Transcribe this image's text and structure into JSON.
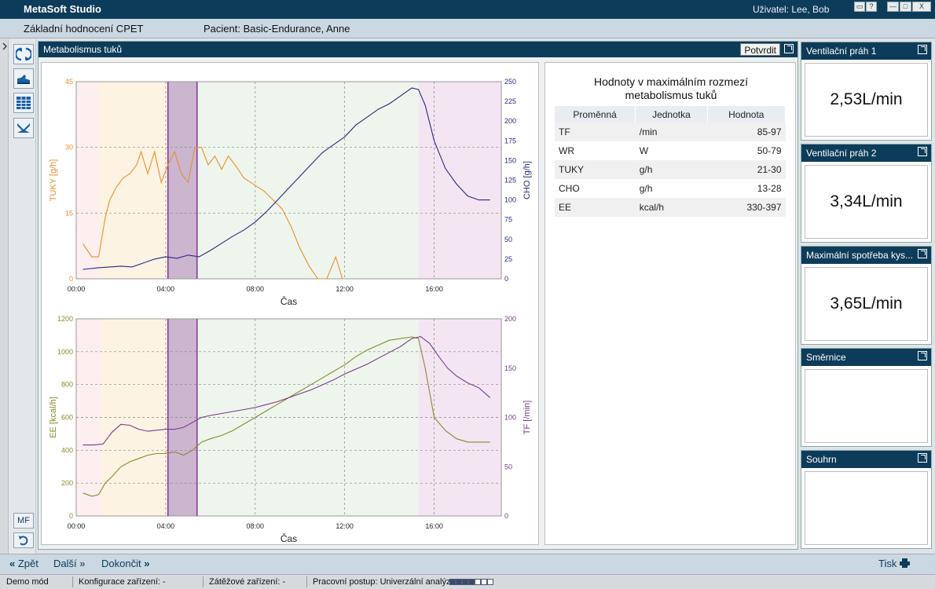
{
  "app": {
    "title": "MetaSoft Studio",
    "user": "Uživatel: Lee, Bob"
  },
  "window_buttons": [
    "▭",
    "?",
    "—",
    "□",
    "X"
  ],
  "info": {
    "test_name": "Základní hodnocení CPET",
    "patient": "Pacient:  Basic-Endurance, Anne"
  },
  "toolbar": {
    "icons": [
      "refresh-icon",
      "shoe-icon",
      "grid-icon",
      "scissors-icon"
    ],
    "mf_label": "MF",
    "undo_icon": "undo-icon"
  },
  "main_panel": {
    "title": "Metabolismus tuků",
    "confirm_label": "Potvrdit"
  },
  "table": {
    "title_line1": "Hodnoty v maximálním rozmezí",
    "title_line2": "metabolismus tuků",
    "headers": [
      "Proměnná",
      "Jednotka",
      "Hodnota"
    ],
    "rows": [
      [
        "TF",
        "/min",
        "85-97"
      ],
      [
        "WR",
        "W",
        "50-79"
      ],
      [
        "TUKY",
        "g/h",
        "21-30"
      ],
      [
        "CHO",
        "g/h",
        "13-28"
      ],
      [
        "EE",
        "kcal/h",
        "330-397"
      ]
    ]
  },
  "right_panels": [
    {
      "title": "Ventilační práh 1",
      "value": "2,53L/min"
    },
    {
      "title": "Ventilační práh 2",
      "value": "3,34L/min"
    },
    {
      "title": "Maximální spotřeba kys...",
      "value": "3,65L/min"
    },
    {
      "title": "Směrnice",
      "value": ""
    },
    {
      "title": "Souhrn",
      "value": ""
    }
  ],
  "nav": {
    "back": "Zpět",
    "next": "Další",
    "finish": "Dokončit",
    "print": "Tisk"
  },
  "status": {
    "mode": "Demo mód",
    "config": "Konfigurace zařízení: -",
    "load": "Zátěžové zařízení: -",
    "workflow": "Pracovní postup: Univerzální analýza",
    "progress_filled": 4,
    "progress_total": 7
  },
  "colors": {
    "fat": "#e8902a",
    "cho": "#2a2a80",
    "ee": "#8a8a2a",
    "tf": "#7a3a8a",
    "header": "#0d3c5a"
  },
  "chart_data": [
    {
      "type": "line",
      "xlabel": "Čas",
      "ylabel_left": "TUKY [g/h]",
      "ylabel_right": "CHO [g/h]",
      "x_ticks": [
        "00:00",
        "04:00",
        "08:00",
        "12:00",
        "16:00"
      ],
      "x_range_min": [
        0,
        19
      ],
      "y_left_ticks": [
        "0",
        "15",
        "30",
        "45"
      ],
      "y_left_range": [
        0,
        45
      ],
      "y_right_ticks": [
        "0",
        "25",
        "50",
        "75",
        "100",
        "125",
        "150",
        "175",
        "200",
        "225",
        "250"
      ],
      "y_right_range": [
        0,
        250
      ],
      "zones_min": [
        {
          "from": 0,
          "to": 1,
          "color": "#fdeef0"
        },
        {
          "from": 1,
          "to": 4.1,
          "color": "#fdf3e3"
        },
        {
          "from": 4.1,
          "to": 5.4,
          "color": "#cbb5cf"
        },
        {
          "from": 5.4,
          "to": 15.3,
          "color": "#eef5ec"
        },
        {
          "from": 15.3,
          "to": 19,
          "color": "#f3e6f2"
        }
      ],
      "markers_min": [
        4.1,
        5.4
      ],
      "series": [
        {
          "axis": "left",
          "color": "#e8902a",
          "x": [
            0.3,
            0.7,
            1.0,
            1.3,
            1.5,
            1.8,
            2.1,
            2.4,
            2.7,
            2.9,
            3.2,
            3.5,
            3.8,
            4.1,
            4.4,
            4.7,
            5.0,
            5.3,
            5.6,
            5.9,
            6.2,
            6.5,
            6.8,
            7.1,
            7.5,
            7.8,
            8.1,
            8.4,
            8.8,
            9.2,
            9.6,
            10.0,
            10.4,
            10.8,
            11.2,
            11.6,
            11.9
          ],
          "y": [
            8,
            5,
            5,
            14,
            18,
            21,
            23,
            24,
            26,
            29,
            24,
            29,
            22,
            26,
            29,
            24,
            22,
            30,
            30,
            26,
            28,
            25,
            28,
            26,
            23,
            22,
            21,
            20,
            18,
            16,
            12,
            7,
            3,
            0,
            0,
            5,
            0
          ]
        },
        {
          "axis": "right",
          "color": "#2a2a80",
          "x": [
            0.3,
            1.0,
            1.5,
            2.0,
            2.5,
            3.0,
            3.5,
            4.0,
            4.5,
            5.0,
            5.5,
            6.0,
            6.5,
            7.0,
            7.5,
            8.0,
            8.5,
            9.0,
            9.5,
            10.0,
            10.5,
            11.0,
            11.5,
            12.0,
            12.5,
            13.0,
            13.5,
            14.0,
            14.5,
            15.0,
            15.3,
            15.6,
            16.0,
            16.5,
            17.0,
            17.5,
            18.0,
            18.5
          ],
          "y": [
            12,
            14,
            15,
            16,
            15,
            20,
            25,
            28,
            26,
            30,
            28,
            36,
            45,
            54,
            62,
            72,
            85,
            100,
            115,
            130,
            145,
            160,
            170,
            180,
            195,
            205,
            215,
            222,
            232,
            242,
            240,
            220,
            175,
            140,
            120,
            105,
            100,
            100
          ]
        }
      ]
    },
    {
      "type": "line",
      "xlabel": "Čas",
      "ylabel_left": "EE [kcal/h]",
      "ylabel_right": "TF [/min]",
      "x_ticks": [
        "00:00",
        "04:00",
        "08:00",
        "12:00",
        "16:00"
      ],
      "x_range_min": [
        0,
        19
      ],
      "y_left_ticks": [
        "0",
        "200",
        "400",
        "600",
        "800",
        "1000",
        "1200"
      ],
      "y_left_range": [
        0,
        1200
      ],
      "y_right_ticks": [
        "0",
        "50",
        "100",
        "150",
        "200"
      ],
      "y_right_range": [
        0,
        200
      ],
      "zones_min": [
        {
          "from": 0,
          "to": 1.1,
          "color": "#fdeef0"
        },
        {
          "from": 1.1,
          "to": 4.1,
          "color": "#fdf3e3"
        },
        {
          "from": 4.1,
          "to": 5.4,
          "color": "#cbb5cf"
        },
        {
          "from": 5.4,
          "to": 15.3,
          "color": "#eef5ec"
        },
        {
          "from": 15.3,
          "to": 19,
          "color": "#f3e6f2"
        }
      ],
      "markers_min": [
        4.1,
        5.4
      ],
      "series": [
        {
          "axis": "left",
          "color": "#8a8a2a",
          "x": [
            0.3,
            0.7,
            1.0,
            1.3,
            1.6,
            2.0,
            2.4,
            2.8,
            3.2,
            3.6,
            4.0,
            4.4,
            4.8,
            5.2,
            5.6,
            6.0,
            6.5,
            7.0,
            7.5,
            8.0,
            8.5,
            9.0,
            9.5,
            10.0,
            10.5,
            11.0,
            11.5,
            12.0,
            12.5,
            13.0,
            13.5,
            14.0,
            14.5,
            15.0,
            15.3,
            15.6,
            16.0,
            16.5,
            17.0,
            17.5,
            18.0,
            18.5
          ],
          "y": [
            140,
            120,
            130,
            200,
            240,
            300,
            330,
            350,
            370,
            380,
            380,
            390,
            370,
            400,
            450,
            470,
            490,
            520,
            560,
            600,
            640,
            680,
            720,
            760,
            800,
            840,
            880,
            920,
            970,
            1010,
            1040,
            1070,
            1080,
            1090,
            1080,
            900,
            600,
            520,
            470,
            450,
            450,
            450
          ]
        },
        {
          "axis": "right",
          "color": "#7a3a8a",
          "x": [
            0.3,
            0.8,
            1.2,
            1.6,
            2.0,
            2.4,
            2.8,
            3.2,
            3.6,
            4.0,
            4.4,
            4.8,
            5.2,
            5.6,
            6.0,
            6.5,
            7.0,
            7.5,
            8.0,
            8.5,
            9.0,
            9.5,
            10.0,
            10.5,
            11.0,
            11.5,
            12.0,
            12.5,
            13.0,
            13.5,
            14.0,
            14.5,
            15.0,
            15.4,
            15.8,
            16.2,
            16.6,
            17.0,
            17.5,
            18.0,
            18.5
          ],
          "y": [
            72,
            72,
            73,
            85,
            93,
            92,
            88,
            86,
            87,
            88,
            88,
            90,
            95,
            100,
            102,
            104,
            106,
            108,
            110,
            113,
            116,
            120,
            124,
            128,
            133,
            138,
            144,
            149,
            154,
            160,
            166,
            172,
            180,
            182,
            175,
            162,
            150,
            142,
            135,
            130,
            120
          ]
        }
      ]
    }
  ]
}
